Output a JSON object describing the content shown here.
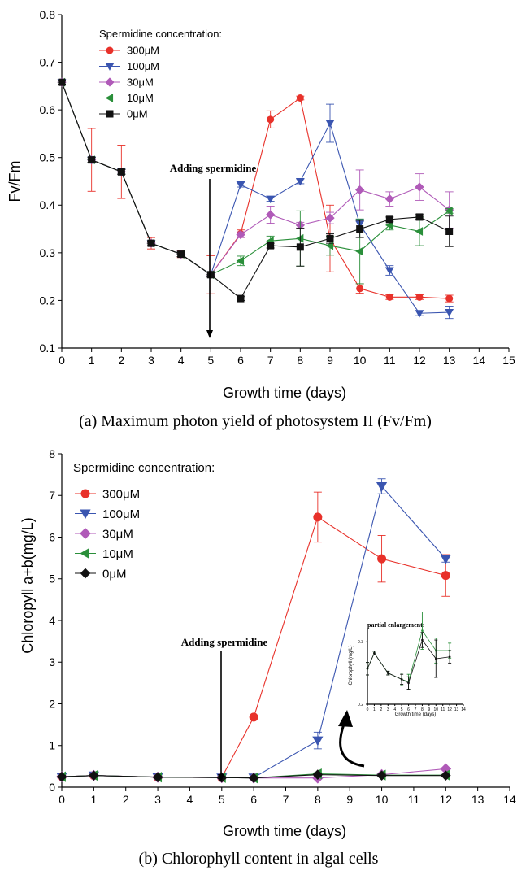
{
  "chart_data": [
    {
      "type": "line",
      "caption": "(a) Maximum photon yield of photosystem II (Fv/Fm)",
      "xlabel": "Growth time (days)",
      "ylabel": "Fv/Fm",
      "xlim": [
        0,
        15
      ],
      "ylim": [
        0.1,
        0.8
      ],
      "xticks": [
        0,
        1,
        2,
        3,
        4,
        5,
        6,
        7,
        8,
        9,
        10,
        11,
        12,
        13,
        14,
        15
      ],
      "yticks": [
        0.1,
        0.2,
        0.3,
        0.4,
        0.5,
        0.6,
        0.7,
        0.8
      ],
      "legend_title": "Spermidine concentration:",
      "legend_position": "top-left",
      "annotation": "Adding spermidine",
      "annotation_x": 5,
      "series": [
        {
          "name": "300μM",
          "color": "#e8312a",
          "marker": "circle",
          "x": [
            0,
            1,
            2,
            3,
            4,
            5,
            6,
            7,
            8,
            9,
            10,
            11,
            12,
            13
          ],
          "y": [
            0.658,
            0.495,
            0.47,
            0.32,
            0.297,
            0.254,
            0.34,
            0.58,
            0.625,
            0.33,
            0.225,
            0.207,
            0.207,
            0.204
          ],
          "err": [
            0.004,
            0.066,
            0.056,
            0.012,
            0.007,
            0.04,
            0.008,
            0.018,
            0.004,
            0.07,
            0.01,
            0.005,
            0.005,
            0.007
          ]
        },
        {
          "name": "100μM",
          "color": "#3a55b0",
          "marker": "triangle-down",
          "x": [
            0,
            1,
            2,
            3,
            4,
            5,
            6,
            7,
            8,
            9,
            10,
            11,
            12,
            13
          ],
          "y": [
            0.658,
            0.495,
            0.47,
            0.32,
            0.297,
            0.254,
            0.443,
            0.413,
            0.45,
            0.572,
            0.36,
            0.263,
            0.173,
            0.175
          ],
          "err": [
            0.004,
            0.005,
            0.005,
            0.005,
            0.005,
            0.005,
            0.005,
            0.005,
            0.005,
            0.04,
            0.01,
            0.01,
            0.005,
            0.013
          ]
        },
        {
          "name": "30μM",
          "color": "#b05ab8",
          "marker": "diamond",
          "x": [
            0,
            1,
            2,
            3,
            4,
            5,
            6,
            7,
            8,
            9,
            10,
            11,
            12,
            13
          ],
          "y": [
            0.658,
            0.495,
            0.47,
            0.32,
            0.297,
            0.254,
            0.338,
            0.38,
            0.358,
            0.373,
            0.432,
            0.413,
            0.438,
            0.39
          ],
          "err": [
            0.004,
            0.005,
            0.005,
            0.005,
            0.005,
            0.005,
            0.006,
            0.018,
            0.006,
            0.012,
            0.042,
            0.015,
            0.028,
            0.038
          ]
        },
        {
          "name": "10μM",
          "color": "#2a8f3a",
          "marker": "triangle-left",
          "x": [
            0,
            1,
            2,
            3,
            4,
            5,
            6,
            7,
            8,
            9,
            10,
            11,
            12,
            13
          ],
          "y": [
            0.658,
            0.495,
            0.47,
            0.32,
            0.297,
            0.254,
            0.283,
            0.325,
            0.33,
            0.315,
            0.303,
            0.358,
            0.345,
            0.388
          ],
          "err": [
            0.004,
            0.005,
            0.005,
            0.005,
            0.005,
            0.005,
            0.01,
            0.01,
            0.058,
            0.02,
            0.068,
            0.01,
            0.03,
            0.005
          ]
        },
        {
          "name": "0μM",
          "color": "#111111",
          "marker": "square",
          "x": [
            0,
            1,
            2,
            3,
            4,
            5,
            6,
            7,
            8,
            9,
            10,
            11,
            12,
            13
          ],
          "y": [
            0.658,
            0.495,
            0.47,
            0.32,
            0.297,
            0.254,
            0.204,
            0.315,
            0.312,
            0.33,
            0.35,
            0.37,
            0.375,
            0.345
          ],
          "err": [
            0.004,
            0.005,
            0.005,
            0.005,
            0.005,
            0.005,
            0.004,
            0.005,
            0.04,
            0.01,
            0.018,
            0.005,
            0.005,
            0.032
          ]
        }
      ]
    },
    {
      "type": "line",
      "caption": "(b) Chlorophyll content in algal cells",
      "xlabel": "Growth time (days)",
      "ylabel": "Chloropyll a+b(mg/L)",
      "xlim": [
        0,
        14
      ],
      "ylim": [
        0,
        8
      ],
      "xticks": [
        0,
        1,
        2,
        3,
        4,
        5,
        6,
        7,
        8,
        9,
        10,
        11,
        12,
        13,
        14
      ],
      "yticks": [
        0,
        1,
        2,
        3,
        4,
        5,
        6,
        7,
        8
      ],
      "legend_title": "Spermidine concentration:",
      "legend_position": "top-left",
      "annotation": "Adding spermidine",
      "annotation_x": 5,
      "series": [
        {
          "name": "300μM",
          "color": "#e8312a",
          "marker": "circle",
          "x": [
            0,
            1,
            3,
            5,
            6,
            8,
            10,
            12
          ],
          "y": [
            0.25,
            0.28,
            0.24,
            0.23,
            1.68,
            6.48,
            5.48,
            5.08
          ],
          "err": [
            0.03,
            0.03,
            0.02,
            0.02,
            0.03,
            0.6,
            0.56,
            0.5
          ]
        },
        {
          "name": "100μM",
          "color": "#3a55b0",
          "marker": "triangle-down",
          "x": [
            0,
            1,
            3,
            5,
            6,
            8,
            10,
            12
          ],
          "y": [
            0.25,
            0.28,
            0.24,
            0.23,
            0.23,
            1.12,
            7.22,
            5.48
          ],
          "err": [
            0.03,
            0.03,
            0.02,
            0.02,
            0.03,
            0.2,
            0.18,
            0.08
          ]
        },
        {
          "name": "30μM",
          "color": "#b05ab8",
          "marker": "diamond",
          "x": [
            0,
            1,
            3,
            5,
            6,
            8,
            10,
            12
          ],
          "y": [
            0.25,
            0.28,
            0.24,
            0.23,
            0.22,
            0.22,
            0.3,
            0.44
          ],
          "err": [
            0.03,
            0.03,
            0.02,
            0.02,
            0.02,
            0.02,
            0.02,
            0.03
          ]
        },
        {
          "name": "10μM",
          "color": "#2a8f3a",
          "marker": "triangle-left",
          "x": [
            0,
            1,
            3,
            5,
            6,
            8,
            10,
            12
          ],
          "y": [
            0.25,
            0.28,
            0.24,
            0.23,
            0.22,
            0.32,
            0.29,
            0.29
          ],
          "err": [
            0.03,
            0.03,
            0.02,
            0.02,
            0.02,
            0.03,
            0.03,
            0.02
          ]
        },
        {
          "name": "0μM",
          "color": "#111111",
          "marker": "diamond-small",
          "x": [
            0,
            1,
            3,
            5,
            6,
            8,
            10,
            12
          ],
          "y": [
            0.25,
            0.28,
            0.24,
            0.23,
            0.22,
            0.3,
            0.28,
            0.28
          ],
          "err": [
            0.03,
            0.03,
            0.02,
            0.02,
            0.02,
            0.03,
            0.03,
            0.02
          ]
        }
      ],
      "inset": {
        "title": "partial enlargement:",
        "xlabel": "Growth time (days)",
        "ylabel": "Chlorophyll (mg/L)",
        "xlim": [
          0,
          14
        ],
        "ylim": [
          0.2,
          0.32
        ],
        "xticks": [
          0,
          1,
          2,
          3,
          4,
          5,
          6,
          7,
          8,
          9,
          10,
          11,
          12,
          13,
          14
        ],
        "yticks": [
          0.2,
          0.3
        ],
        "series": [
          {
            "name": "10μM",
            "color": "#2a8f3a",
            "x": [
              0,
              1,
              3,
              5,
              6,
              8,
              10,
              12
            ],
            "y": [
              0.257,
              0.282,
              0.25,
              0.24,
              0.236,
              0.318,
              0.286,
              0.286
            ],
            "err": [
              0.01,
              0.003,
              0.003,
              0.01,
              0.012,
              0.03,
              0.02,
              0.012
            ]
          },
          {
            "name": "0μM",
            "color": "#111111",
            "x": [
              0,
              1,
              3,
              5,
              6,
              8,
              10,
              12
            ],
            "y": [
              0.257,
              0.282,
              0.25,
              0.24,
              0.234,
              0.303,
              0.273,
              0.276
            ],
            "err": [
              0.01,
              0.003,
              0.003,
              0.008,
              0.01,
              0.012,
              0.03,
              0.01
            ]
          }
        ]
      }
    }
  ]
}
